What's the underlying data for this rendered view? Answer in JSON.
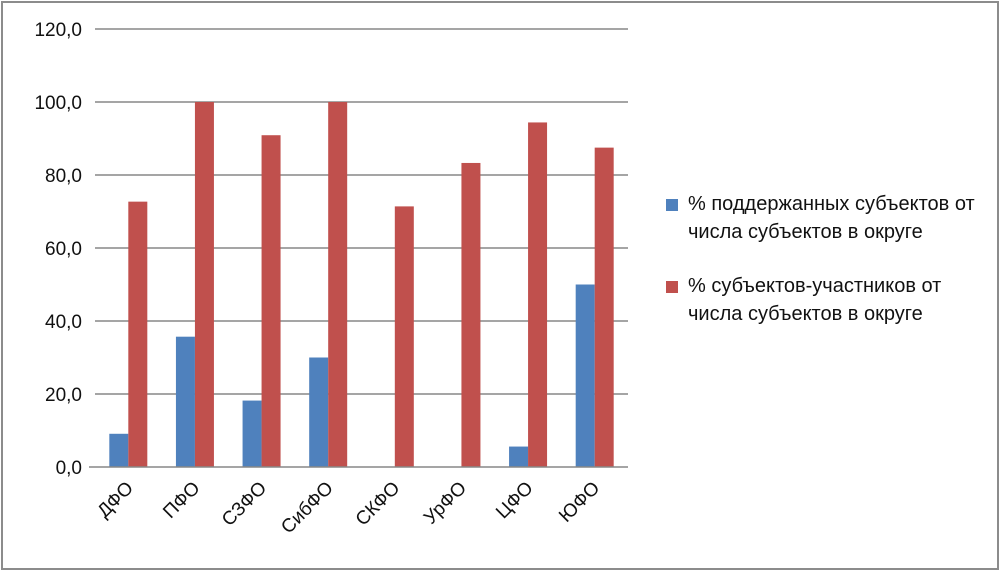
{
  "chart_data": {
    "type": "bar",
    "categories": [
      "ДФО",
      "ПФО",
      "СЗФО",
      "СибФО",
      "СКФО",
      "УрФО",
      "ЦФО",
      "ЮФО"
    ],
    "series": [
      {
        "name": "% поддержанных субъектов от числа субъектов в округе",
        "color": "#4f81bd",
        "values": [
          9.1,
          35.7,
          18.2,
          30.0,
          0.0,
          0.0,
          5.6,
          50.0
        ]
      },
      {
        "name": "% субъектов-участников от числа субъектов в округе",
        "color": "#c0504d",
        "values": [
          72.7,
          100.0,
          90.9,
          100.0,
          71.4,
          83.3,
          94.4,
          87.5
        ]
      }
    ],
    "ylim": [
      0,
      120
    ],
    "yticks": [
      "0,0",
      "20,0",
      "40,0",
      "60,0",
      "80,0",
      "100,0",
      "120,0"
    ],
    "ytick_values": [
      0,
      20,
      40,
      60,
      80,
      100,
      120
    ],
    "grid": true,
    "legend_position": "right",
    "xlabel": "",
    "ylabel": "",
    "title": ""
  }
}
